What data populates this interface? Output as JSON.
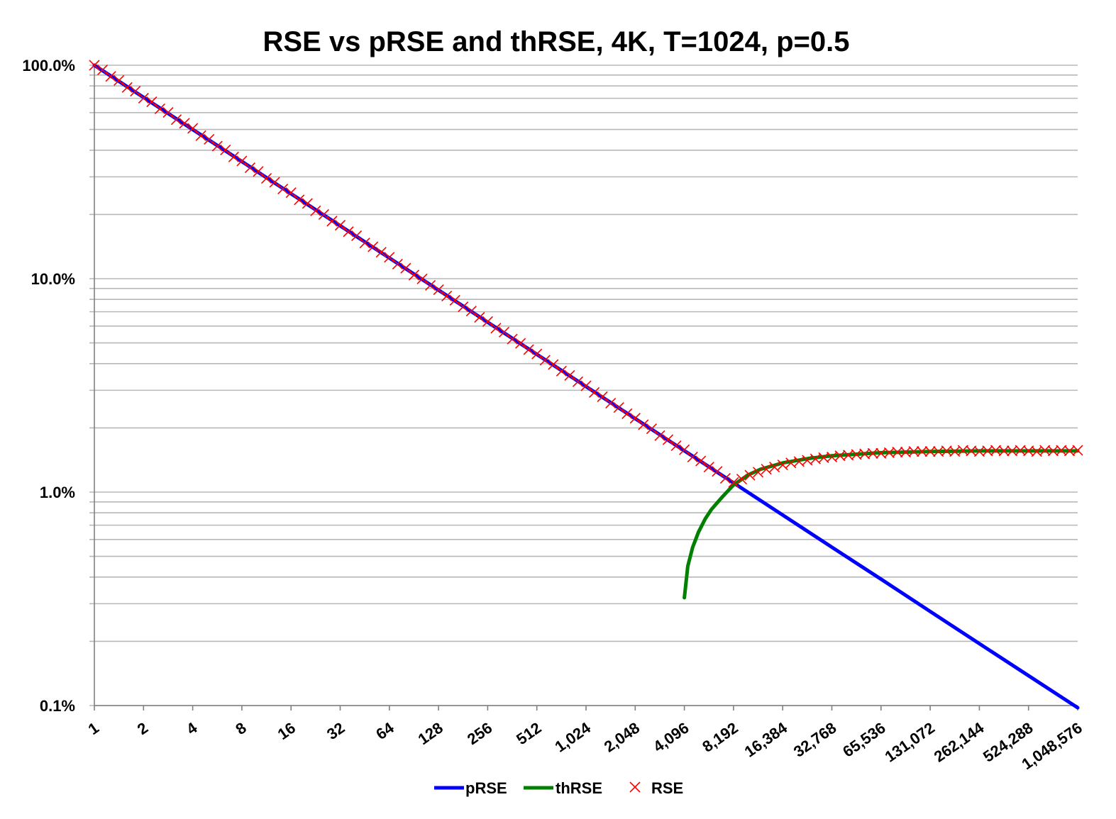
{
  "chart_data": {
    "type": "line",
    "title": "RSE vs pRSE and thRSE, 4K, T=1024, p=0.5",
    "xlabel": "",
    "ylabel": "",
    "x_scale": "log2",
    "y_scale": "log10",
    "xlim": [
      1,
      1048576
    ],
    "ylim_percent": [
      0.1,
      100
    ],
    "x_tick_labels": [
      "1",
      "2",
      "4",
      "8",
      "16",
      "32",
      "64",
      "128",
      "256",
      "512",
      "1,024",
      "2,048",
      "4,096",
      "8,192",
      "16,384",
      "32,768",
      "65,536",
      "131,072",
      "262,144",
      "524,288",
      "1,048,576"
    ],
    "y_tick_labels": [
      "100.0%",
      "10.0%",
      "1.0%",
      "0.1%"
    ],
    "grid": "horizontal major and minor",
    "legend_position": "bottom",
    "colors": {
      "pRSE": "#0000ff",
      "thRSE": "#008000",
      "RSE": "#ff0000"
    },
    "series": [
      {
        "name": "pRSE",
        "style": "line",
        "x": [
          1,
          2,
          4,
          8,
          16,
          32,
          64,
          128,
          256,
          512,
          1024,
          2048,
          4096,
          8192,
          16384,
          32768,
          65536,
          131072,
          262144,
          524288,
          1048576
        ],
        "y_percent": [
          100,
          70.7,
          50,
          35.4,
          25,
          17.7,
          12.5,
          8.84,
          6.25,
          4.42,
          3.125,
          2.21,
          1.5625,
          1.105,
          0.781,
          0.552,
          0.391,
          0.276,
          0.195,
          0.138,
          0.0977
        ]
      },
      {
        "name": "thRSE",
        "style": "line",
        "x": [
          4096,
          4300,
          4600,
          5000,
          5500,
          6000,
          7000,
          8192,
          10000,
          12000,
          16384,
          24000,
          32768,
          65536,
          131072,
          262144,
          1048576
        ],
        "y_percent": [
          0.32,
          0.45,
          0.55,
          0.65,
          0.75,
          0.83,
          0.95,
          1.08,
          1.2,
          1.28,
          1.37,
          1.44,
          1.48,
          1.53,
          1.55,
          1.56,
          1.56
        ]
      },
      {
        "name": "RSE",
        "style": "markers-x",
        "log2_x_start": 0,
        "log2_x_step": 0.16667,
        "y_percent": [
          100,
          95.1,
          88.6,
          84.9,
          78.7,
          75.6,
          70.1,
          67.4,
          62.5,
          60.1,
          55.6,
          53.5,
          50.6,
          46.8,
          45.0,
          41.8,
          40.1,
          37.2,
          35.6,
          33.1,
          31.8,
          29.5,
          28.3,
          26.3,
          25.3,
          23.4,
          22.5,
          20.8,
          20.0,
          18.6,
          17.8,
          16.6,
          15.9,
          14.7,
          14.1,
          13.3,
          12.6,
          11.7,
          11.2,
          10.4,
          9.98,
          9.3,
          8.88,
          8.29,
          7.92,
          7.38,
          7.05,
          6.59,
          6.3,
          5.86,
          5.62,
          5.21,
          4.98,
          4.65,
          4.44,
          4.15,
          3.96,
          3.69,
          3.52,
          3.29,
          3.15,
          2.93,
          2.8,
          2.61,
          2.49,
          2.33,
          2.22,
          2.07,
          1.98,
          1.84,
          1.76,
          1.65,
          1.58,
          1.46,
          1.4,
          1.31,
          1.25,
          1.16,
          1.11,
          1.15,
          1.2,
          1.24,
          1.28,
          1.31,
          1.34,
          1.37,
          1.39,
          1.41,
          1.43,
          1.45,
          1.46,
          1.48,
          1.49,
          1.5,
          1.51,
          1.52,
          1.52,
          1.53,
          1.54,
          1.54,
          1.55,
          1.55,
          1.55,
          1.55,
          1.56,
          1.55,
          1.57,
          1.56,
          1.55,
          1.56,
          1.57,
          1.56,
          1.56,
          1.57,
          1.56,
          1.55,
          1.57,
          1.56,
          1.57,
          1.56,
          1.57
        ]
      }
    ]
  }
}
